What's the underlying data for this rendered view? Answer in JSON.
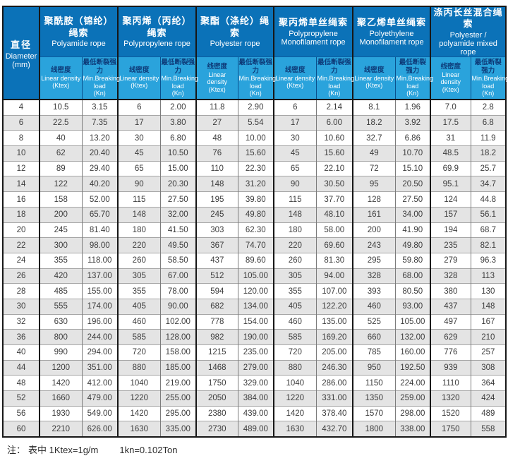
{
  "colors": {
    "header_dark": "#0b72b8",
    "header_light": "#2aa3dc",
    "subheader_cn_text": "#0d3a78",
    "row_alt": "#e4e4e4"
  },
  "table": {
    "diameter_header": {
      "cn": "直径",
      "en": "Diameter",
      "unit": "(mm)"
    },
    "subheaders": {
      "linear_density": {
        "cn": "线密度",
        "en_lines": [
          "Linear density",
          "(Ktex)"
        ]
      },
      "breaking_load": {
        "cn": "最低断裂强力",
        "en_lines": [
          "Min.Breaking",
          "load",
          "(Kn)"
        ]
      }
    },
    "groups": [
      {
        "cn": "聚酰胺（锦纶）绳索",
        "en": "Polyamide rope"
      },
      {
        "cn": "聚丙烯（丙纶）绳索",
        "en": "Polypropylene rope"
      },
      {
        "cn": "聚酯（涤纶）绳索",
        "en": "Polyester rope"
      },
      {
        "cn": "聚丙烯单丝绳索",
        "en": "Polypropylene Monofilament rope"
      },
      {
        "cn": "聚乙烯单丝绳索",
        "en": "Polyethylene Monofilament rope"
      },
      {
        "cn": "涤丙长丝混合绳索",
        "en": "Polyester / polyamide mixed rope"
      }
    ],
    "rows": [
      {
        "d": "4",
        "values": [
          "10.5",
          "3.15",
          "6",
          "2.00",
          "11.8",
          "2.90",
          "6",
          "2.14",
          "8.1",
          "1.96",
          "7.0",
          "2.8"
        ]
      },
      {
        "d": "6",
        "values": [
          "22.5",
          "7.35",
          "17",
          "3.80",
          "27",
          "5.54",
          "17",
          "6.00",
          "18.2",
          "3.92",
          "17.5",
          "6.8"
        ]
      },
      {
        "d": "8",
        "values": [
          "40",
          "13.20",
          "30",
          "6.80",
          "48",
          "10.00",
          "30",
          "10.60",
          "32.7",
          "6.86",
          "31",
          "11.9"
        ]
      },
      {
        "d": "10",
        "values": [
          "62",
          "20.40",
          "45",
          "10.50",
          "76",
          "15.60",
          "45",
          "15.60",
          "49",
          "10.70",
          "48.5",
          "18.2"
        ]
      },
      {
        "d": "12",
        "values": [
          "89",
          "29.40",
          "65",
          "15.00",
          "110",
          "22.30",
          "65",
          "22.10",
          "72",
          "15.10",
          "69.9",
          "25.7"
        ]
      },
      {
        "d": "14",
        "values": [
          "122",
          "40.20",
          "90",
          "20.30",
          "148",
          "31.20",
          "90",
          "30.50",
          "95",
          "20.50",
          "95.1",
          "34.7"
        ]
      },
      {
        "d": "16",
        "values": [
          "158",
          "52.00",
          "115",
          "27.50",
          "195",
          "39.80",
          "115",
          "37.70",
          "128",
          "27.50",
          "124",
          "44.8"
        ]
      },
      {
        "d": "18",
        "values": [
          "200",
          "65.70",
          "148",
          "32.00",
          "245",
          "49.80",
          "148",
          "48.10",
          "161",
          "34.00",
          "157",
          "56.1"
        ]
      },
      {
        "d": "20",
        "values": [
          "245",
          "81.40",
          "180",
          "41.50",
          "303",
          "62.30",
          "180",
          "58.00",
          "200",
          "41.90",
          "194",
          "68.7"
        ]
      },
      {
        "d": "22",
        "values": [
          "300",
          "98.00",
          "220",
          "49.50",
          "367",
          "74.70",
          "220",
          "69.60",
          "243",
          "49.80",
          "235",
          "82.1"
        ]
      },
      {
        "d": "24",
        "values": [
          "355",
          "118.00",
          "260",
          "58.50",
          "437",
          "89.60",
          "260",
          "81.30",
          "295",
          "59.80",
          "279",
          "96.3"
        ]
      },
      {
        "d": "26",
        "values": [
          "420",
          "137.00",
          "305",
          "67.00",
          "512",
          "105.00",
          "305",
          "94.00",
          "328",
          "68.00",
          "328",
          "113"
        ]
      },
      {
        "d": "28",
        "values": [
          "485",
          "155.00",
          "355",
          "78.00",
          "594",
          "120.00",
          "355",
          "107.00",
          "393",
          "80.50",
          "380",
          "130"
        ]
      },
      {
        "d": "30",
        "values": [
          "555",
          "174.00",
          "405",
          "90.00",
          "682",
          "134.00",
          "405",
          "122.20",
          "460",
          "93.00",
          "437",
          "148"
        ]
      },
      {
        "d": "32",
        "values": [
          "630",
          "196.00",
          "460",
          "102.00",
          "778",
          "154.00",
          "460",
          "135.00",
          "525",
          "105.00",
          "497",
          "167"
        ]
      },
      {
        "d": "36",
        "values": [
          "800",
          "244.00",
          "585",
          "128.00",
          "982",
          "190.00",
          "585",
          "169.20",
          "660",
          "132.00",
          "629",
          "210"
        ]
      },
      {
        "d": "40",
        "values": [
          "990",
          "294.00",
          "720",
          "158.00",
          "1215",
          "235.00",
          "720",
          "205.00",
          "785",
          "160.00",
          "776",
          "257"
        ]
      },
      {
        "d": "44",
        "values": [
          "1200",
          "351.00",
          "880",
          "185.00",
          "1468",
          "279.00",
          "880",
          "246.30",
          "950",
          "192.50",
          "939",
          "308"
        ]
      },
      {
        "d": "48",
        "values": [
          "1420",
          "412.00",
          "1040",
          "219.00",
          "1750",
          "329.00",
          "1040",
          "286.00",
          "1150",
          "224.00",
          "1110",
          "364"
        ]
      },
      {
        "d": "52",
        "values": [
          "1660",
          "479.00",
          "1220",
          "255.00",
          "2050",
          "384.00",
          "1220",
          "331.00",
          "1350",
          "259.00",
          "1320",
          "424"
        ]
      },
      {
        "d": "56",
        "values": [
          "1930",
          "549.00",
          "1420",
          "295.00",
          "2380",
          "439.00",
          "1420",
          "378.40",
          "1570",
          "298.00",
          "1520",
          "489"
        ]
      },
      {
        "d": "60",
        "values": [
          "2210",
          "626.00",
          "1630",
          "335.00",
          "2730",
          "489.00",
          "1630",
          "432.70",
          "1800",
          "338.00",
          "1750",
          "558"
        ]
      }
    ]
  },
  "footer": {
    "label": "注：",
    "ktex": "表中 1Ktex=1g/m",
    "kn": "1kn=0.102Ton"
  }
}
